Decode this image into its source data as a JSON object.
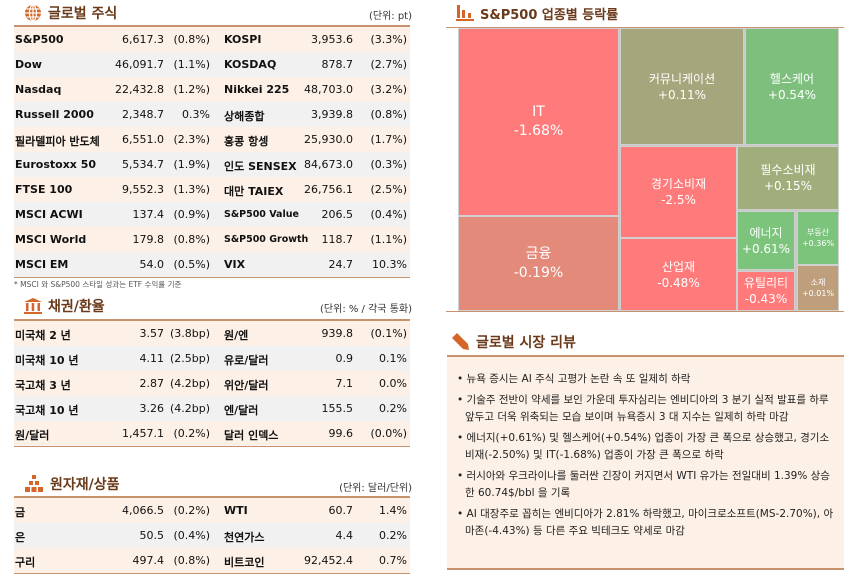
{
  "equities": {
    "title": "글로벌 주식",
    "unit": "(단위: pt)",
    "icon": "globe-icon",
    "rows": [
      {
        "n1": "S&P500",
        "v1": "6,617.3",
        "p1": "(0.8%)",
        "n2": "KOSPI",
        "v2": "3,953.6",
        "p2": "(3.3%)"
      },
      {
        "n1": "Dow",
        "v1": "46,091.7",
        "p1": "(1.1%)",
        "n2": "KOSDAQ",
        "v2": "878.7",
        "p2": "(2.7%)"
      },
      {
        "n1": "Nasdaq",
        "v1": "22,432.8",
        "p1": "(1.2%)",
        "n2": "Nikkei 225",
        "v2": "48,703.0",
        "p2": "(3.2%)"
      },
      {
        "n1": "Russell 2000",
        "v1": "2,348.7",
        "p1": "0.3%",
        "n2": "상해종합",
        "v2": "3,939.8",
        "p2": "(0.8%)"
      },
      {
        "n1": "필라델피아 반도체",
        "v1": "6,551.0",
        "p1": "(2.3%)",
        "n2": "홍콩 항셍",
        "v2": "25,930.0",
        "p2": "(1.7%)"
      },
      {
        "n1": "Eurostoxx 50",
        "v1": "5,534.7",
        "p1": "(1.9%)",
        "n2": "인도 SENSEX",
        "v2": "84,673.0",
        "p2": "(0.3%)"
      },
      {
        "n1": "FTSE 100",
        "v1": "9,552.3",
        "p1": "(1.3%)",
        "n2": "대만 TAIEX",
        "v2": "26,756.1",
        "p2": "(2.5%)"
      },
      {
        "n1": "MSCI ACWI",
        "v1": "137.4",
        "p1": "(0.9%)",
        "n2": "S&P500 Value",
        "v2": "206.5",
        "p2": "(0.4%)"
      },
      {
        "n1": "MSCI World",
        "v1": "179.8",
        "p1": "(0.8%)",
        "n2": "S&P500 Growth",
        "v2": "118.7",
        "p2": "(1.1%)"
      },
      {
        "n1": "MSCI EM",
        "v1": "54.0",
        "p1": "(0.5%)",
        "n2": "VIX",
        "v2": "24.7",
        "p2": "10.3%"
      }
    ],
    "footnote": "* MSCI 와 S&P500 스타일 성과는 ETF 수익률 기준"
  },
  "bonds": {
    "title": "채권/환율",
    "unit": "(단위: % / 각국 통화)",
    "icon": "bank-icon",
    "rows": [
      {
        "n1": "미국채 2 년",
        "v1": "3.57",
        "p1": "(3.8bp)",
        "n2": "원/엔",
        "v2": "939.8",
        "p2": "(0.1%)"
      },
      {
        "n1": "미국채 10 년",
        "v1": "4.11",
        "p1": "(2.5bp)",
        "n2": "유로/달러",
        "v2": "0.9",
        "p2": "0.1%"
      },
      {
        "n1": "국고채 3 년",
        "v1": "2.87",
        "p1": "(4.2bp)",
        "n2": "위안/달러",
        "v2": "7.1",
        "p2": "0.0%"
      },
      {
        "n1": "국고채 10 년",
        "v1": "3.26",
        "p1": "(4.2bp)",
        "n2": "엔/달러",
        "v2": "155.5",
        "p2": "0.2%"
      },
      {
        "n1": "원/달러",
        "v1": "1,457.1",
        "p1": "(0.2%)",
        "n2": "달러 인덱스",
        "v2": "99.6",
        "p2": "(0.0%)"
      }
    ]
  },
  "commodities": {
    "title": "원자재/상품",
    "unit": "(단위: 달러/단위)",
    "icon": "gold-bars-icon",
    "rows": [
      {
        "n1": "금",
        "v1": "4,066.5",
        "p1": "(0.2%)",
        "n2": "WTI",
        "v2": "60.7",
        "p2": "1.4%"
      },
      {
        "n1": "은",
        "v1": "50.5",
        "p1": "(0.4%)",
        "n2": "천연가스",
        "v2": "4.4",
        "p2": "0.2%"
      },
      {
        "n1": "구리",
        "v1": "497.4",
        "p1": "(0.8%)",
        "n2": "비트코인",
        "v2": "92,452.4",
        "p2": "0.7%"
      }
    ]
  },
  "sectors": {
    "title": "S&P500 업종별 등락률",
    "icon": "bar-chart-icon",
    "items": [
      {
        "name": "IT",
        "change": "-1.68%",
        "color": "#ff7b7b"
      },
      {
        "name": "금융",
        "change": "-0.19%",
        "color": "#e38a7b"
      },
      {
        "name": "커뮤니케이션",
        "change": "+0.11%",
        "color": "#a6a67c"
      },
      {
        "name": "헬스케어",
        "change": "+0.54%",
        "color": "#7ebf7e"
      },
      {
        "name": "경기소비재",
        "change": "-2.5%",
        "color": "#ff7b7b"
      },
      {
        "name": "산업재",
        "change": "-0.48%",
        "color": "#ff7b7b"
      },
      {
        "name": "필수소비재",
        "change": "+0.15%",
        "color": "#a0ae7c"
      },
      {
        "name": "에너지",
        "change": "+0.61%",
        "color": "#7cc47c"
      },
      {
        "name": "부동산",
        "change": "+0.36%",
        "color": "#7cc47c"
      },
      {
        "name": "유틸리티",
        "change": "-0.43%",
        "color": "#ff7b7b"
      },
      {
        "name": "소재",
        "change": "+0.01%",
        "color": "#bf9e7c"
      }
    ]
  },
  "review": {
    "title": "글로벌 시장 리뷰",
    "icon": "pencil-icon",
    "bullets": [
      "• 뉴욕 증시는 AI 주식 고평가 논란 속 또 일제히 하락",
      "• 기술주 전반이 약세를 보인 가운데 투자심리는 엔비디아의 3 분기 실적 발표를 하루 앞두고 더욱 위축되는 모습 보이며 뉴욕증시 3 대 지수는 일제히 하락 마감",
      "• 에너지(+0.61%) 및 헬스케어(+0.54%) 업종이 가장 큰 폭으로 상승했고, 경기소비재(-2.50%) 및 IT(-1.68%) 업종이 가장 큰 폭으로 하락",
      "• 러시아와 우크라이나를 둘러싼 긴장이 커지면서 WTI 유가는 전일대비 1.39% 상승한 60.74$/bbl 을 기록",
      "• AI 대장주로 꼽히는 엔비디아가 2.81% 하락했고, 마이크로소프트(MS-2.70%), 아마존(-4.43%) 등 다른 주요 빅테크도 약세로 마감"
    ]
  }
}
